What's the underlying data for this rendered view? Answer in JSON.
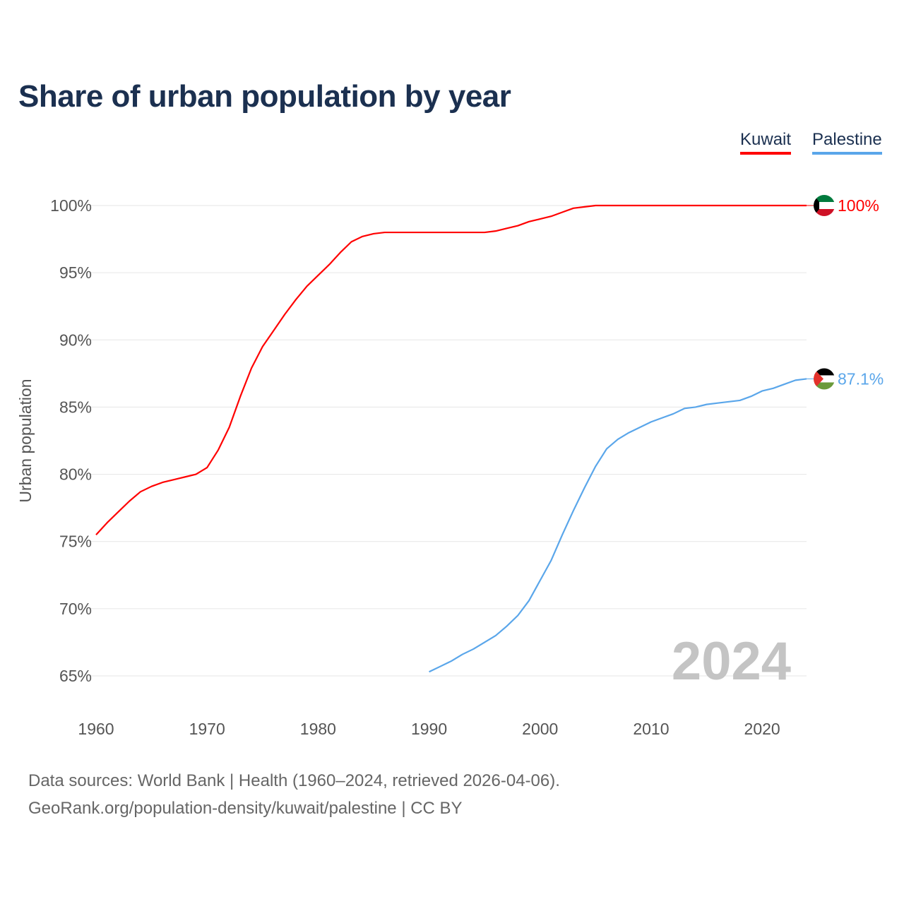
{
  "title": "Share of urban population by year",
  "legend": [
    "Kuwait",
    "Palestine"
  ],
  "footer": {
    "line1": "Data sources: World Bank | Health (1960–2024, retrieved 2026-04-06).",
    "line2": "GeoRank.org/population-density/kuwait/palestine | CC BY"
  },
  "colors": {
    "Kuwait": "#ff0000",
    "Palestine": "#5aa6ea"
  },
  "chart_data": {
    "type": "line",
    "title": "Share of urban population by year",
    "ylabel": "Urban population",
    "xlabel": "",
    "xlim": [
      1960,
      2024
    ],
    "ylim": [
      65,
      100
    ],
    "xticks": [
      1960,
      1970,
      1980,
      1990,
      2000,
      2010,
      2020
    ],
    "yticks": [
      65,
      70,
      75,
      80,
      85,
      90,
      95,
      100
    ],
    "ytick_labels": [
      "65%",
      "70%",
      "75%",
      "80%",
      "85%",
      "90%",
      "95%",
      "100%"
    ],
    "xtick_labels": [
      "1960",
      "1970",
      "1980",
      "1990",
      "2000",
      "2010",
      "2020"
    ],
    "year_watermark": "2024",
    "grid": true,
    "legend_position": "top-right",
    "series": [
      {
        "name": "Kuwait",
        "start": 1960,
        "end_label": "100%",
        "values": [
          75.5,
          76.4,
          77.2,
          78.0,
          78.7,
          79.1,
          79.4,
          79.6,
          79.8,
          80.0,
          80.5,
          81.8,
          83.5,
          85.8,
          87.9,
          89.5,
          90.7,
          91.9,
          93.0,
          94.0,
          94.8,
          95.6,
          96.5,
          97.3,
          97.7,
          97.9,
          98.0,
          98.0,
          98.0,
          98.0,
          98.0,
          98.0,
          98.0,
          98.0,
          98.0,
          98.0,
          98.1,
          98.3,
          98.5,
          98.8,
          99.0,
          99.2,
          99.5,
          99.8,
          99.9,
          100,
          100,
          100,
          100,
          100,
          100,
          100,
          100,
          100,
          100,
          100,
          100,
          100,
          100,
          100,
          100,
          100,
          100,
          100,
          100
        ]
      },
      {
        "name": "Palestine",
        "start": 1990,
        "end_label": "87.1%",
        "values": [
          65.3,
          65.7,
          66.1,
          66.6,
          67.0,
          67.5,
          68.0,
          68.7,
          69.5,
          70.6,
          72.1,
          73.6,
          75.5,
          77.3,
          79.0,
          80.6,
          81.9,
          82.6,
          83.1,
          83.5,
          83.9,
          84.2,
          84.5,
          84.9,
          85.0,
          85.2,
          85.3,
          85.4,
          85.5,
          85.8,
          86.2,
          86.4,
          86.7,
          87.0,
          87.1
        ]
      }
    ]
  }
}
